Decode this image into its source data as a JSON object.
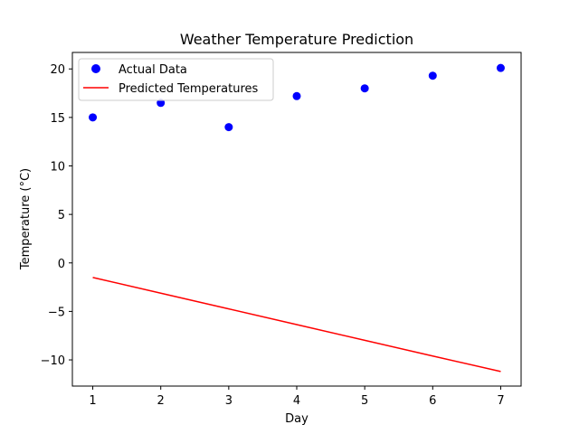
{
  "chart_data": {
    "type": "scatter",
    "title": "Weather Temperature Prediction",
    "xlabel": "Day",
    "ylabel": "Temperature (°C)",
    "xlim": [
      0.7,
      7.3
    ],
    "ylim": [
      -12.7,
      21.7
    ],
    "xticks": [
      1,
      2,
      3,
      4,
      5,
      6,
      7
    ],
    "yticks": [
      -10,
      -5,
      0,
      5,
      10,
      15,
      20
    ],
    "ytick_labels": [
      "−10",
      "−5",
      "0",
      "5",
      "10",
      "15",
      "20"
    ],
    "grid": false,
    "legend_position": "upper-left",
    "series": [
      {
        "name": "Actual Data",
        "kind": "scatter",
        "color": "#0000ff",
        "x": [
          1,
          2,
          3,
          4,
          5,
          6,
          7
        ],
        "y": [
          15.0,
          16.5,
          14.0,
          17.2,
          18.0,
          19.3,
          20.1
        ]
      },
      {
        "name": "Predicted Temperatures",
        "kind": "line",
        "color": "#ff0000",
        "x": [
          1,
          2,
          3,
          4,
          5,
          6,
          7
        ],
        "y": [
          -1.5,
          -3.12,
          -4.74,
          -6.36,
          -7.98,
          -9.6,
          -11.2
        ]
      }
    ]
  }
}
